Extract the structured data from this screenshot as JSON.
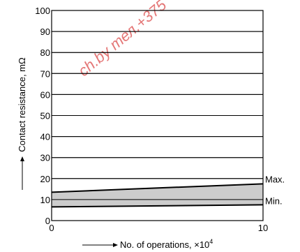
{
  "chart_data": {
    "type": "area",
    "x": [
      0,
      10
    ],
    "series": [
      {
        "name": "Max.",
        "values": [
          13.5,
          17.5
        ]
      },
      {
        "name": "Min.",
        "values": [
          6.5,
          7.5
        ]
      }
    ],
    "xlim": [
      0,
      10
    ],
    "ylim": [
      0,
      100
    ],
    "xticks": [
      0,
      10
    ],
    "yticks": [
      0,
      10,
      20,
      30,
      40,
      50,
      60,
      70,
      80,
      90,
      100
    ],
    "xlabel_prefix": "No. of operations, ×10",
    "xlabel_exponent": "4",
    "ylabel": "Contact resistance, mΩ",
    "band_fill_color": "#cccccc",
    "line_color": "#000000",
    "grid": "horizontal"
  },
  "watermark": {
    "text": "ch.by тел.+375",
    "color": "#e06060"
  }
}
